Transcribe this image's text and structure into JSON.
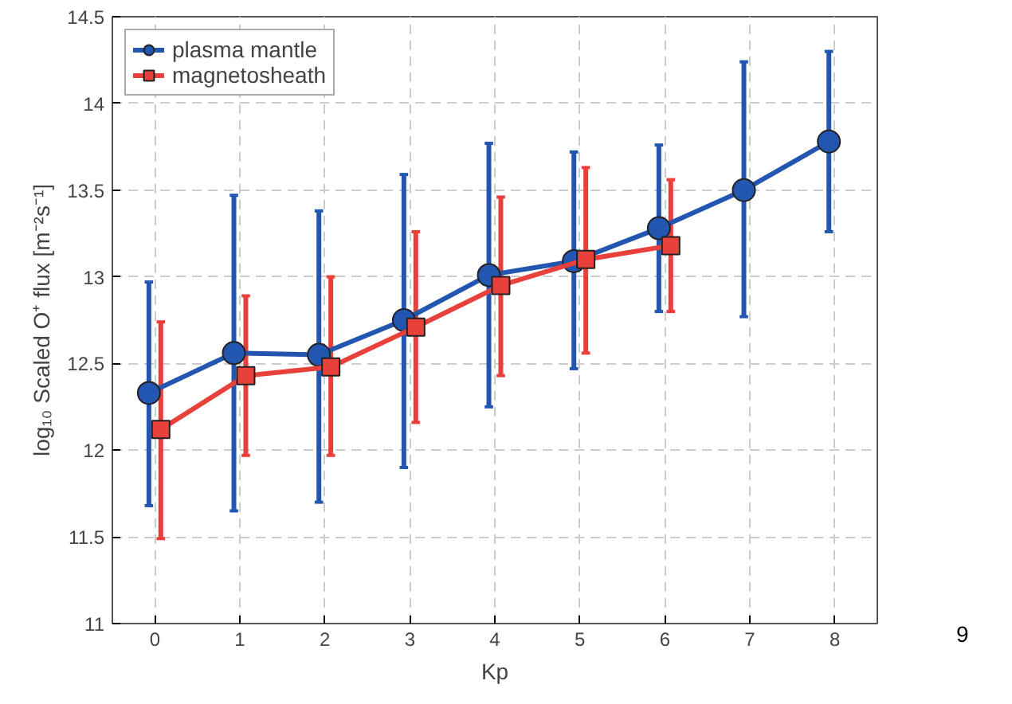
{
  "chart_data": {
    "type": "line",
    "xlabel": "Kp",
    "ylabel": "log₁₀ Scaled O⁺ flux [m⁻²s⁻¹]",
    "xlim": [
      -0.5,
      8.5
    ],
    "xticks": [
      0,
      1,
      2,
      3,
      4,
      5,
      6,
      7,
      8
    ],
    "ylim": [
      11,
      14.5
    ],
    "yticks": [
      11,
      11.5,
      12,
      12.5,
      13,
      13.5,
      14,
      14.5
    ],
    "grid": true,
    "legend": "top left",
    "line_style": "solid",
    "series": [
      {
        "name": "plasma mantle",
        "color": "#2356b0",
        "marker": "circle",
        "x": [
          -0.07,
          0.93,
          1.93,
          2.93,
          3.93,
          4.93,
          5.93,
          6.93,
          7.93
        ],
        "values": [
          12.33,
          12.56,
          12.55,
          12.75,
          13.01,
          13.09,
          13.28,
          13.5,
          13.78
        ],
        "errors": [
          [
            11.68,
            12.97
          ],
          [
            11.65,
            13.47
          ],
          [
            11.7,
            13.38
          ],
          [
            11.9,
            13.59
          ],
          [
            12.25,
            13.77
          ],
          [
            12.47,
            13.72
          ],
          [
            12.8,
            13.76
          ],
          [
            12.77,
            14.24
          ],
          [
            13.26,
            14.3
          ]
        ]
      },
      {
        "name": "magnetosheath",
        "color": "#e8403a",
        "marker": "square",
        "x": [
          0.07,
          1.07,
          2.07,
          3.07,
          4.07,
          5.07,
          6.07
        ],
        "values": [
          12.12,
          12.43,
          12.48,
          12.71,
          12.95,
          13.1,
          13.18
        ],
        "errors": [
          [
            11.49,
            12.74
          ],
          [
            11.97,
            12.89
          ],
          [
            11.97,
            13.0
          ],
          [
            12.16,
            13.26
          ],
          [
            12.43,
            13.46
          ],
          [
            12.56,
            13.63
          ],
          [
            12.8,
            13.56
          ]
        ]
      }
    ],
    "annotations": [
      "9"
    ]
  }
}
